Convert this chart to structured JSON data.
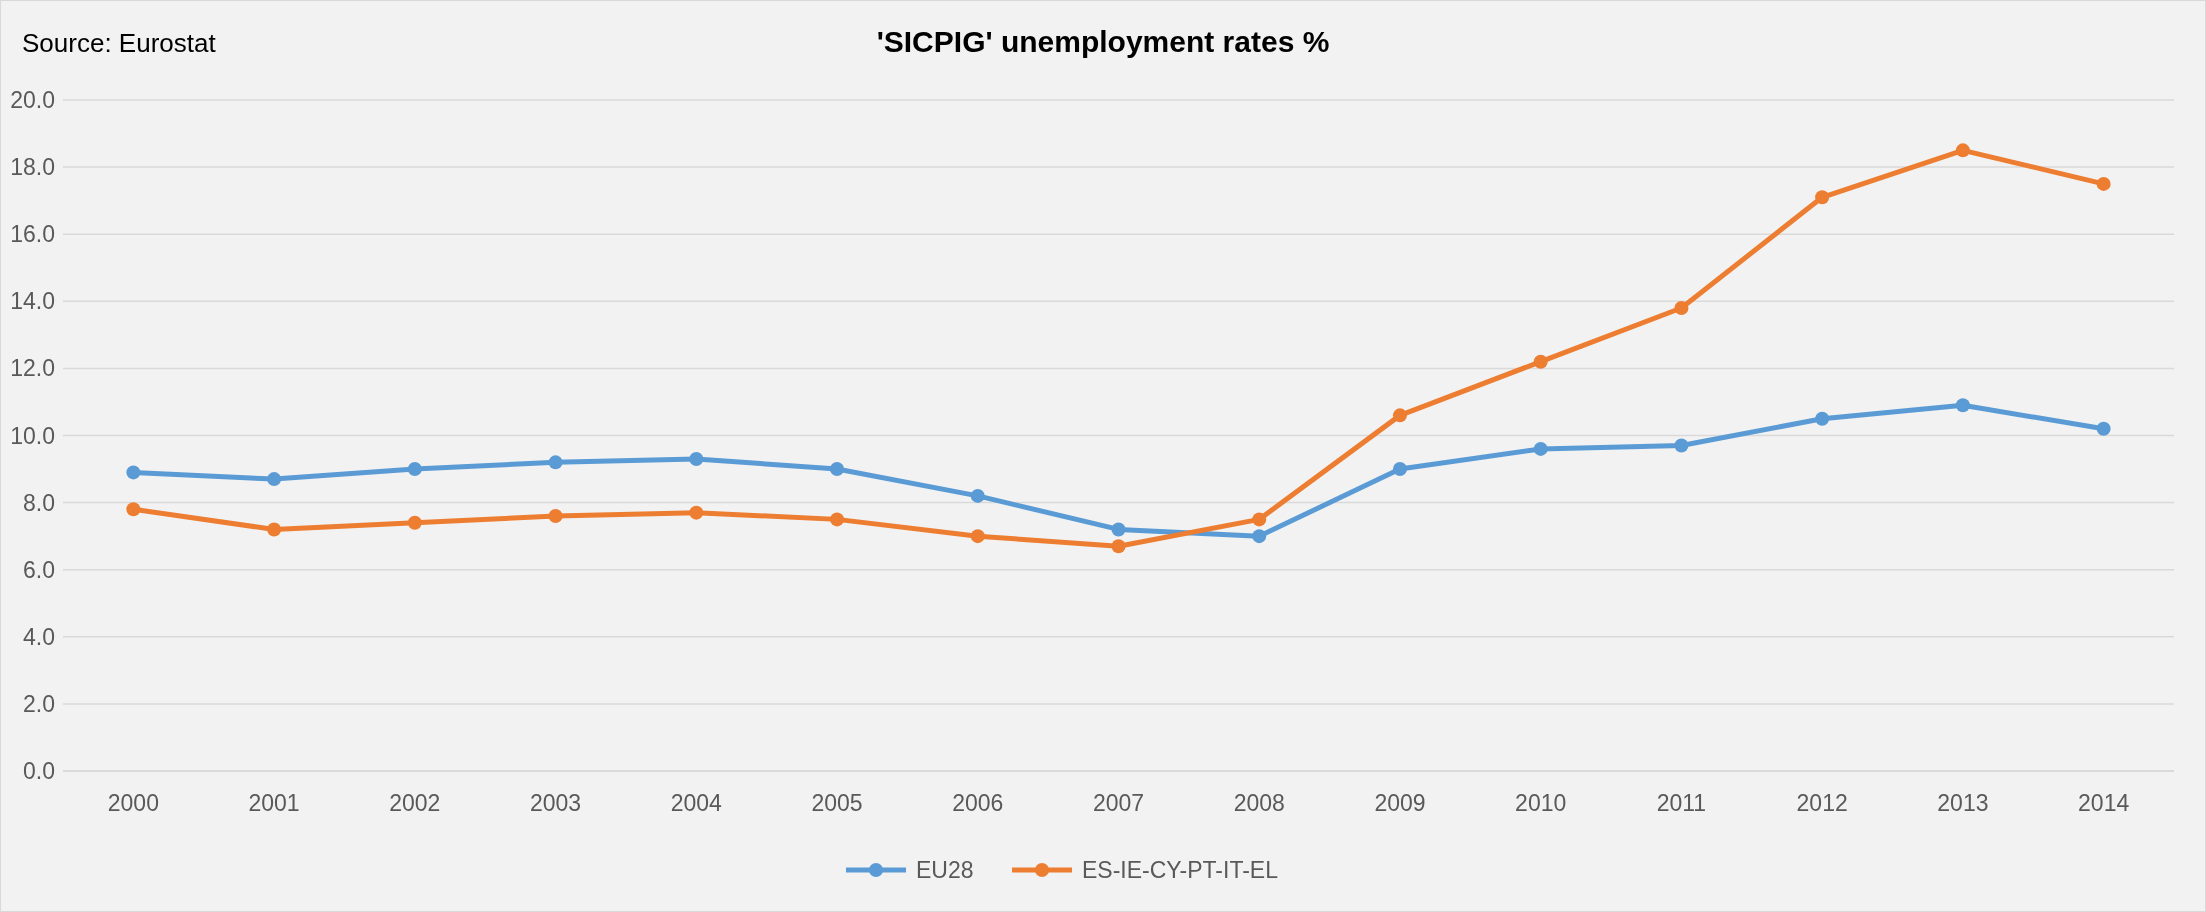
{
  "chart_data": {
    "type": "line",
    "title": "'SICPIG' unemployment rates %",
    "annotations": [
      "Source: Eurostat"
    ],
    "categories": [
      "2000",
      "2001",
      "2002",
      "2003",
      "2004",
      "2005",
      "2006",
      "2007",
      "2008",
      "2009",
      "2010",
      "2011",
      "2012",
      "2013",
      "2014"
    ],
    "series": [
      {
        "name": "EU28",
        "color": "#5b9bd5",
        "values": [
          8.9,
          8.7,
          9.0,
          9.2,
          9.3,
          9.0,
          8.2,
          7.2,
          7.0,
          9.0,
          9.6,
          9.7,
          10.5,
          10.9,
          10.2
        ]
      },
      {
        "name": "ES-IE-CY-PT-IT-EL",
        "color": "#ed7d31",
        "values": [
          7.8,
          7.2,
          7.4,
          7.6,
          7.7,
          7.5,
          7.0,
          6.7,
          7.5,
          10.6,
          12.2,
          13.8,
          17.1,
          18.5,
          17.5
        ]
      }
    ],
    "ylim": [
      0,
      20
    ],
    "yticks": [
      {
        "value": 0,
        "label": "0.0"
      },
      {
        "value": 2,
        "label": "2.0"
      },
      {
        "value": 4,
        "label": "4.0"
      },
      {
        "value": 6,
        "label": "6.0"
      },
      {
        "value": 8,
        "label": "8.0"
      },
      {
        "value": 10,
        "label": "10.0"
      },
      {
        "value": 12,
        "label": "12.0"
      },
      {
        "value": 14,
        "label": "14.0"
      },
      {
        "value": 16,
        "label": "16.0"
      },
      {
        "value": 18,
        "label": "18.0"
      },
      {
        "value": 20,
        "label": "20.0"
      }
    ],
    "grid": "y",
    "legend": "bottom",
    "marker": "circle",
    "line_style": "solid"
  }
}
